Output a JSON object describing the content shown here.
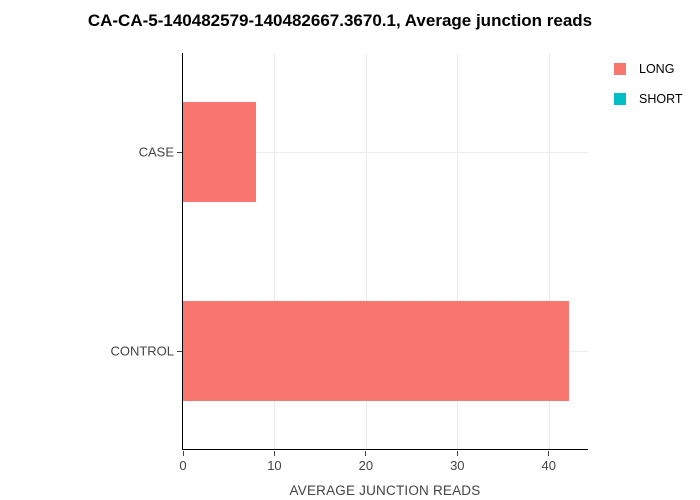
{
  "chart_data": {
    "type": "bar",
    "orientation": "horizontal",
    "title": "CA-CA-5-140482579-140482667.3670.1, Average junction reads",
    "categories": [
      "CASE",
      "CONTROL"
    ],
    "series": [
      {
        "name": "LONG",
        "color": "#F8766D",
        "values": [
          8,
          42.2
        ]
      },
      {
        "name": "SHORT",
        "color": "#00BFC4",
        "values": [
          0,
          0
        ]
      }
    ],
    "xlabel": "AVERAGE JUNCTION READS",
    "ylabel": "",
    "xlim": [
      0,
      44.4
    ],
    "xticks": [
      0,
      10,
      20,
      30,
      40
    ],
    "grid": true,
    "background": "#ffffff",
    "gridline_color": "#ececec",
    "axis_color": "#000000",
    "legend_position": "right"
  }
}
